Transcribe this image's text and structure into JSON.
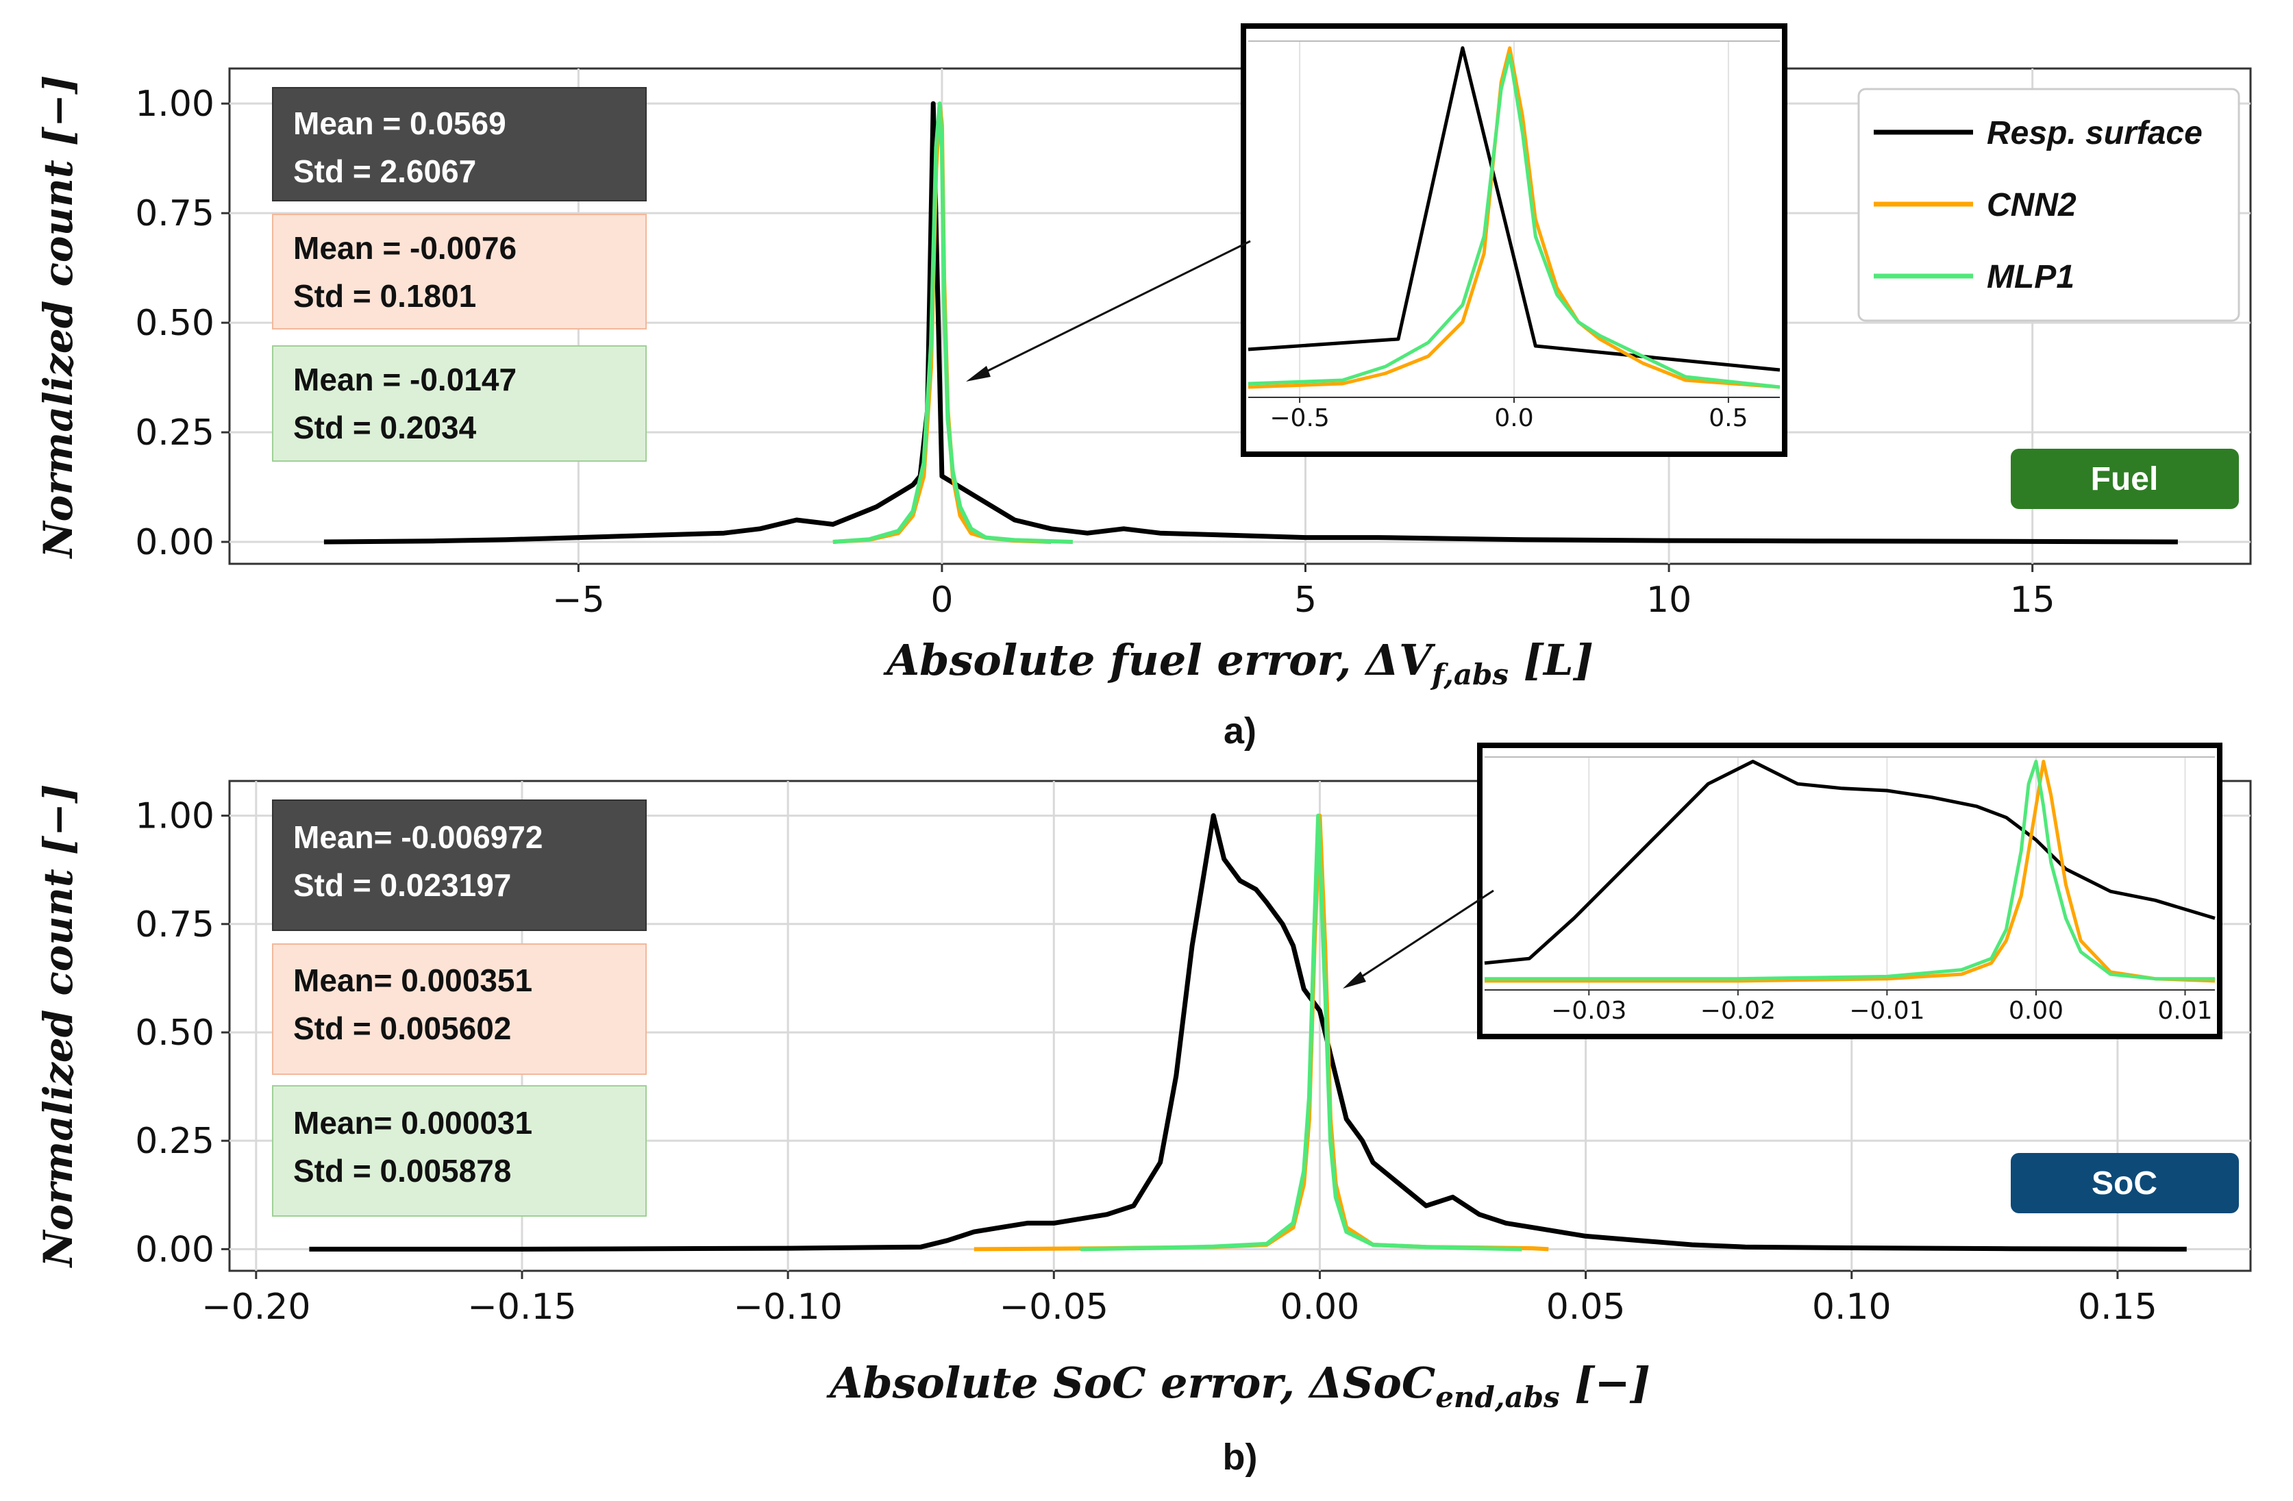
{
  "colors": {
    "resp_surface": "#000000",
    "cnn2": "#ffa500",
    "mlp1": "#50e87a",
    "fuel_badge": "#2e7d24",
    "soc_badge": "#0d4a78",
    "box_dark": "#4a4a4a",
    "box_orange": "#fde3d6",
    "box_green": "#dcf0d8"
  },
  "ylabel": "Normalized count [−]",
  "legend": [
    "Resp. surface",
    "CNN2",
    "MLP1"
  ],
  "panels": [
    {
      "label": "a)",
      "badge": "Fuel",
      "xlabel": "Absolute fuel error, ΔV",
      "xlabel_sub": "f,abs",
      "xlabel_unit": " [L]",
      "stats": [
        {
          "mean": "Mean = 0.0569",
          "std": "Std = 2.6067"
        },
        {
          "mean": "Mean = -0.0076",
          "std": "Std = 0.1801"
        },
        {
          "mean": "Mean = -0.0147",
          "std": "Std = 0.2034"
        }
      ]
    },
    {
      "label": "b)",
      "badge": "SoC",
      "xlabel": "Absolute SoC error, ΔSoC",
      "xlabel_sub": "end,abs",
      "xlabel_unit": " [−]",
      "stats": [
        {
          "mean": "Mean= -0.006972",
          "std": "Std = 0.023197"
        },
        {
          "mean": "Mean= 0.000351",
          "std": "Std = 0.005602"
        },
        {
          "mean": "Mean= 0.000031",
          "std": "Std = 0.005878"
        }
      ]
    }
  ],
  "chart_data": [
    {
      "type": "line",
      "title": "",
      "xlabel": "Absolute fuel error, ΔVf,abs [L]",
      "ylabel": "Normalized count [−]",
      "xlim": [
        -9.8,
        18.0
      ],
      "ylim": [
        -0.05,
        1.08
      ],
      "xticks": [
        -5,
        0,
        5,
        10,
        15
      ],
      "xtick_labels": [
        "−5",
        "0",
        "5",
        "10",
        "15"
      ],
      "yticks": [
        0,
        0.25,
        0.5,
        0.75,
        1.0
      ],
      "ytick_labels": [
        "0.00",
        "0.25",
        "0.50",
        "0.75",
        "1.00"
      ],
      "grid": true,
      "series": [
        {
          "name": "Resp. surface",
          "x": [
            -8.5,
            -7,
            -6,
            -5,
            -4,
            -3,
            -2.5,
            -2,
            -1.5,
            -1.2,
            -0.9,
            -0.6,
            -0.4,
            -0.3,
            -0.2,
            -0.12,
            0.0,
            0.2,
            0.5,
            1.0,
            1.5,
            2.0,
            2.5,
            3.0,
            4.0,
            5.0,
            6.0,
            8.0,
            10.0,
            12.0,
            15.0,
            17.0
          ],
          "y": [
            0,
            0.002,
            0.005,
            0.01,
            0.015,
            0.02,
            0.03,
            0.05,
            0.04,
            0.06,
            0.08,
            0.11,
            0.13,
            0.15,
            0.3,
            1.0,
            0.15,
            0.13,
            0.1,
            0.05,
            0.03,
            0.02,
            0.03,
            0.02,
            0.015,
            0.01,
            0.01,
            0.005,
            0.003,
            0.002,
            0.001,
            0.0
          ]
        },
        {
          "name": "CNN2",
          "x": [
            -1.5,
            -1.0,
            -0.6,
            -0.4,
            -0.25,
            -0.15,
            -0.08,
            -0.03,
            0.0,
            0.03,
            0.08,
            0.15,
            0.25,
            0.4,
            0.6,
            1.0,
            1.5
          ],
          "y": [
            0,
            0.005,
            0.02,
            0.06,
            0.15,
            0.4,
            0.85,
            1.0,
            0.95,
            0.6,
            0.3,
            0.15,
            0.06,
            0.02,
            0.01,
            0.003,
            0.0
          ]
        },
        {
          "name": "MLP1",
          "x": [
            -1.5,
            -1.0,
            -0.6,
            -0.4,
            -0.25,
            -0.15,
            -0.08,
            -0.03,
            0.0,
            0.03,
            0.08,
            0.15,
            0.25,
            0.4,
            0.6,
            1.0,
            1.8
          ],
          "y": [
            0,
            0.006,
            0.025,
            0.07,
            0.18,
            0.45,
            0.9,
            1.0,
            0.9,
            0.55,
            0.28,
            0.16,
            0.08,
            0.03,
            0.01,
            0.004,
            0.0
          ]
        }
      ],
      "inset": {
        "xlim": [
          -0.62,
          0.62
        ],
        "ylim": [
          -0.02,
          1.02
        ],
        "xticks": [
          -0.5,
          0.0,
          0.5
        ],
        "xtick_labels": [
          "−0.5",
          "0.0",
          "0.5"
        ],
        "series": [
          {
            "name": "Resp. surface",
            "x": [
              -0.62,
              -0.27,
              -0.12,
              0.05,
              0.62
            ],
            "y": [
              0.12,
              0.15,
              1.0,
              0.13,
              0.06
            ]
          },
          {
            "name": "CNN2",
            "x": [
              -0.62,
              -0.4,
              -0.3,
              -0.2,
              -0.12,
              -0.07,
              -0.03,
              -0.01,
              0.02,
              0.05,
              0.1,
              0.15,
              0.2,
              0.3,
              0.4,
              0.62
            ],
            "y": [
              0.01,
              0.02,
              0.05,
              0.1,
              0.2,
              0.4,
              0.9,
              1.0,
              0.8,
              0.5,
              0.3,
              0.2,
              0.15,
              0.08,
              0.03,
              0.01
            ]
          },
          {
            "name": "MLP1",
            "x": [
              -0.62,
              -0.4,
              -0.3,
              -0.2,
              -0.12,
              -0.07,
              -0.03,
              -0.01,
              0.02,
              0.05,
              0.1,
              0.15,
              0.2,
              0.3,
              0.4,
              0.62
            ],
            "y": [
              0.02,
              0.03,
              0.07,
              0.14,
              0.25,
              0.45,
              0.88,
              0.98,
              0.75,
              0.45,
              0.28,
              0.2,
              0.16,
              0.1,
              0.04,
              0.01
            ]
          }
        ]
      }
    },
    {
      "type": "line",
      "title": "",
      "xlabel": "Absolute SoC error, ΔSoCend,abs [−]",
      "ylabel": "Normalized count [−]",
      "xlim": [
        -0.205,
        0.175
      ],
      "ylim": [
        -0.05,
        1.08
      ],
      "xticks": [
        -0.2,
        -0.15,
        -0.1,
        -0.05,
        0.0,
        0.05,
        0.1,
        0.15
      ],
      "xtick_labels": [
        "−0.20",
        "−0.15",
        "−0.10",
        "−0.05",
        "0.00",
        "0.05",
        "0.10",
        "0.15"
      ],
      "yticks": [
        0,
        0.25,
        0.5,
        0.75,
        1.0
      ],
      "ytick_labels": [
        "0.00",
        "0.25",
        "0.50",
        "0.75",
        "1.00"
      ],
      "grid": true,
      "series": [
        {
          "name": "Resp. surface",
          "x": [
            -0.19,
            -0.15,
            -0.1,
            -0.075,
            -0.07,
            -0.065,
            -0.06,
            -0.055,
            -0.05,
            -0.045,
            -0.04,
            -0.035,
            -0.03,
            -0.027,
            -0.024,
            -0.022,
            -0.02,
            -0.018,
            -0.015,
            -0.012,
            -0.01,
            -0.007,
            -0.005,
            -0.003,
            0.0,
            0.003,
            0.005,
            0.008,
            0.01,
            0.015,
            0.02,
            0.025,
            0.03,
            0.035,
            0.04,
            0.045,
            0.05,
            0.06,
            0.07,
            0.08,
            0.1,
            0.13,
            0.163
          ],
          "y": [
            0,
            0,
            0.002,
            0.005,
            0.02,
            0.04,
            0.05,
            0.06,
            0.06,
            0.07,
            0.08,
            0.1,
            0.2,
            0.4,
            0.7,
            0.85,
            1.0,
            0.9,
            0.85,
            0.83,
            0.8,
            0.75,
            0.7,
            0.6,
            0.55,
            0.4,
            0.3,
            0.25,
            0.2,
            0.15,
            0.1,
            0.12,
            0.08,
            0.06,
            0.05,
            0.04,
            0.03,
            0.02,
            0.01,
            0.005,
            0.003,
            0.001,
            0.0
          ]
        },
        {
          "name": "CNN2",
          "x": [
            -0.065,
            -0.04,
            -0.02,
            -0.01,
            -0.005,
            -0.003,
            -0.002,
            -0.001,
            0.0,
            0.001,
            0.002,
            0.003,
            0.005,
            0.01,
            0.02,
            0.04,
            0.043
          ],
          "y": [
            0,
            0.002,
            0.005,
            0.01,
            0.05,
            0.15,
            0.3,
            0.7,
            1.0,
            0.7,
            0.3,
            0.15,
            0.05,
            0.01,
            0.005,
            0.002,
            0.0
          ]
        },
        {
          "name": "MLP1",
          "x": [
            -0.045,
            -0.03,
            -0.02,
            -0.01,
            -0.005,
            -0.003,
            -0.002,
            -0.001,
            -0.0003,
            0.001,
            0.002,
            0.003,
            0.005,
            0.01,
            0.02,
            0.03,
            0.038
          ],
          "y": [
            0,
            0.003,
            0.006,
            0.012,
            0.06,
            0.18,
            0.35,
            0.75,
            1.0,
            0.6,
            0.25,
            0.12,
            0.04,
            0.01,
            0.005,
            0.002,
            0.0
          ]
        }
      ],
      "inset": {
        "xlim": [
          -0.037,
          0.012
        ],
        "ylim": [
          -0.02,
          1.02
        ],
        "xticks": [
          -0.03,
          -0.02,
          -0.01,
          0.0,
          0.01
        ],
        "xtick_labels": [
          "−0.03",
          "−0.02",
          "−0.01",
          "0.00",
          "0.01"
        ],
        "series": [
          {
            "name": "Resp. surface",
            "x": [
              -0.037,
              -0.034,
              -0.031,
              -0.028,
              -0.025,
              -0.022,
              -0.019,
              -0.016,
              -0.013,
              -0.01,
              -0.007,
              -0.004,
              -0.002,
              0.0,
              0.002,
              0.005,
              0.008,
              0.012
            ],
            "y": [
              0.1,
              0.12,
              0.3,
              0.5,
              0.7,
              0.9,
              1.0,
              0.9,
              0.88,
              0.87,
              0.84,
              0.8,
              0.75,
              0.65,
              0.52,
              0.42,
              0.38,
              0.3
            ]
          },
          {
            "name": "CNN2",
            "x": [
              -0.037,
              -0.02,
              -0.01,
              -0.005,
              -0.003,
              -0.002,
              -0.001,
              0.0,
              0.0005,
              0.001,
              0.002,
              0.003,
              0.005,
              0.008,
              0.012
            ],
            "y": [
              0.02,
              0.02,
              0.03,
              0.05,
              0.1,
              0.2,
              0.4,
              0.8,
              1.0,
              0.85,
              0.45,
              0.2,
              0.06,
              0.03,
              0.02
            ]
          },
          {
            "name": "MLP1",
            "x": [
              -0.037,
              -0.02,
              -0.01,
              -0.005,
              -0.003,
              -0.002,
              -0.001,
              -0.0005,
              0.0,
              0.0005,
              0.001,
              0.002,
              0.003,
              0.005,
              0.008,
              0.012
            ],
            "y": [
              0.03,
              0.03,
              0.04,
              0.07,
              0.12,
              0.25,
              0.6,
              0.9,
              1.0,
              0.8,
              0.55,
              0.3,
              0.15,
              0.05,
              0.03,
              0.03
            ]
          }
        ]
      }
    }
  ]
}
